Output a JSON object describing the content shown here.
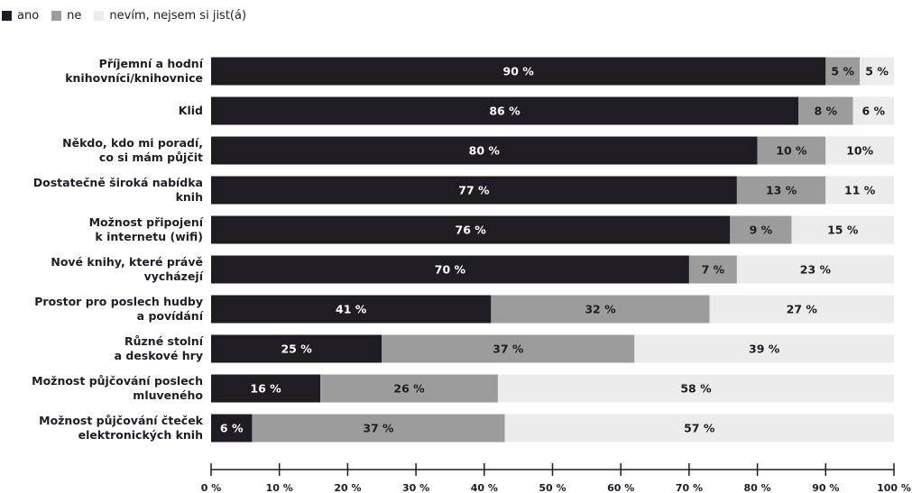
{
  "chart_data": {
    "type": "stacked-bar-horizontal",
    "categories": [
      "Příjemní a hodní\nknihovníci/knihovnice",
      "Klid",
      "Někdo, kdo mi poradí,\nco si mám půjčit",
      "Dostatečně široká nabídka\nknih",
      "Možnost připojení\nk internetu (wifi)",
      "Nové knihy, které právě\nvycházejí",
      "Prostor pro poslech hudby\na povídání",
      "Různé stolní\na deskové hry",
      "Možnost půjčování poslech\nmluveného",
      "Možnost půjčování čteček\nelektronických knih"
    ],
    "series": [
      {
        "name": "ano",
        "color": "#1f1c23",
        "label_color": "#ffffff",
        "values": [
          90,
          86,
          80,
          77,
          76,
          70,
          41,
          25,
          16,
          6
        ],
        "value_labels": [
          "90 %",
          "86 %",
          "80 %",
          "77 %",
          "76 %",
          "70 %",
          "41 %",
          "25 %",
          "16 %",
          "6 %"
        ]
      },
      {
        "name": "ne",
        "color": "#9c9c9c",
        "label_color": "#1f1c23",
        "values": [
          5,
          8,
          10,
          13,
          9,
          7,
          32,
          37,
          26,
          37
        ],
        "value_labels": [
          "5 %",
          "8 %",
          "10 %",
          "13 %",
          "9 %",
          "7 %",
          "32 %",
          "37 %",
          "26 %",
          "37 %"
        ]
      },
      {
        "name": "nevím, nejsem si jist(á)",
        "color": "#ececec",
        "label_color": "#1f1c23",
        "values": [
          5,
          6,
          10,
          11,
          15,
          23,
          27,
          39,
          58,
          57
        ],
        "value_labels": [
          "5 %",
          "6 %",
          "10%",
          "11 %",
          "15 %",
          "23 %",
          "27 %",
          "39 %",
          "58 %",
          "57 %"
        ]
      }
    ],
    "xlim": [
      0,
      100
    ],
    "xticks": [
      {
        "value": 0,
        "label": "0 %"
      },
      {
        "value": 10,
        "label": "10 %"
      },
      {
        "value": 20,
        "label": "20 %"
      },
      {
        "value": 30,
        "label": "30 %"
      },
      {
        "value": 40,
        "label": "40 %"
      },
      {
        "value": 50,
        "label": "50 %"
      },
      {
        "value": 60,
        "label": "60 %"
      },
      {
        "value": 70,
        "label": "70 %"
      },
      {
        "value": 80,
        "label": "80 %"
      },
      {
        "value": 90,
        "label": "90 %"
      },
      {
        "value": 100,
        "label": "100 %"
      }
    ],
    "legend": "top-left"
  }
}
